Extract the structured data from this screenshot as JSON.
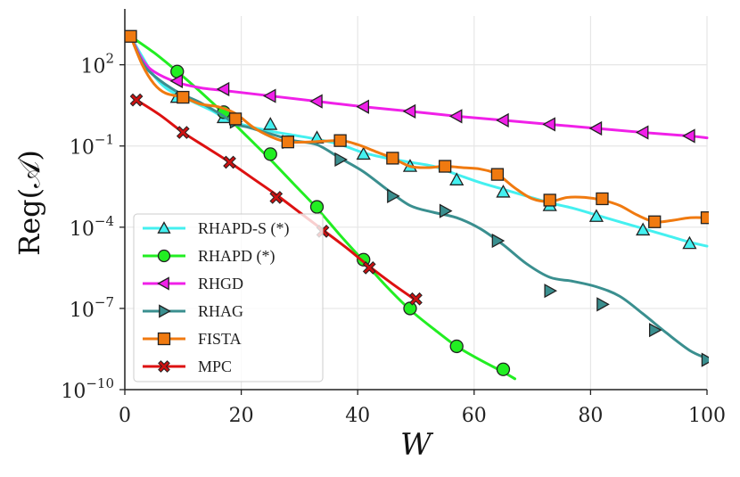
{
  "chart_data": {
    "type": "line",
    "xlabel": "W",
    "ylabel": "Reg(𝒜)",
    "xlim": [
      0,
      100
    ],
    "ylim_log10": [
      -10,
      3.8
    ],
    "yscale": "log",
    "grid": true,
    "legend_position": "lower-left",
    "x_ticks": [
      {
        "value": 0,
        "label": "0"
      },
      {
        "value": 20,
        "label": "20"
      },
      {
        "value": 40,
        "label": "40"
      },
      {
        "value": 60,
        "label": "60"
      },
      {
        "value": 80,
        "label": "80"
      },
      {
        "value": 100,
        "label": "100"
      }
    ],
    "y_ticks": [
      {
        "exp": 2,
        "base": "10",
        "sup": "2"
      },
      {
        "exp": -1,
        "base": "10",
        "sup": "−1"
      },
      {
        "exp": -4,
        "base": "10",
        "sup": "−4"
      },
      {
        "exp": -7,
        "base": "10",
        "sup": "−7"
      },
      {
        "exp": -10,
        "base": "10",
        "sup": "−10"
      }
    ],
    "series": [
      {
        "name": "RHAPD-S (*)",
        "color": "#44f0f0",
        "marker": "triangle-up",
        "marker_fill": "#44f0f0",
        "line": [
          [
            1,
            3.05
          ],
          [
            3,
            2.3
          ],
          [
            5,
            1.6
          ],
          [
            7,
            1.15
          ],
          [
            9,
            0.9
          ],
          [
            12,
            0.6
          ],
          [
            15,
            0.3
          ],
          [
            17,
            0.05
          ],
          [
            20,
            -0.2
          ],
          [
            25,
            -0.45
          ],
          [
            29,
            -0.6
          ],
          [
            33,
            -0.75
          ],
          [
            37,
            -0.95
          ],
          [
            41,
            -1.25
          ],
          [
            45,
            -1.45
          ],
          [
            49,
            -1.6
          ],
          [
            53,
            -1.75
          ],
          [
            57,
            -2.05
          ],
          [
            61,
            -2.35
          ],
          [
            65,
            -2.6
          ],
          [
            69,
            -2.85
          ],
          [
            73,
            -3.1
          ],
          [
            77,
            -3.3
          ],
          [
            81,
            -3.55
          ],
          [
            85,
            -3.8
          ],
          [
            89,
            -4.05
          ],
          [
            93,
            -4.3
          ],
          [
            97,
            -4.55
          ],
          [
            100,
            -4.7
          ]
        ],
        "markers": [
          [
            9,
            0.8
          ],
          [
            17,
            0.05
          ],
          [
            25,
            -0.2
          ],
          [
            33,
            -0.7
          ],
          [
            41,
            -1.3
          ],
          [
            49,
            -1.75
          ],
          [
            57,
            -2.25
          ],
          [
            65,
            -2.7
          ],
          [
            73,
            -3.2
          ],
          [
            81,
            -3.6
          ],
          [
            89,
            -4.1
          ],
          [
            97,
            -4.6
          ]
        ]
      },
      {
        "name": "RHAPD (*)",
        "color": "#22ee22",
        "marker": "circle",
        "marker_fill": "#22ee22",
        "line": [
          [
            1,
            3.05
          ],
          [
            5,
            2.45
          ],
          [
            9,
            1.75
          ],
          [
            13,
            1.0
          ],
          [
            17,
            0.2
          ],
          [
            21,
            -0.65
          ],
          [
            25,
            -1.5
          ],
          [
            29,
            -2.4
          ],
          [
            33,
            -3.3
          ],
          [
            37,
            -4.3
          ],
          [
            41,
            -5.25
          ],
          [
            45,
            -6.2
          ],
          [
            49,
            -7.05
          ],
          [
            53,
            -7.75
          ],
          [
            57,
            -8.4
          ],
          [
            61,
            -8.9
          ],
          [
            65,
            -9.35
          ],
          [
            67,
            -9.6
          ]
        ],
        "markers": [
          [
            9,
            1.75
          ],
          [
            17,
            0.25
          ],
          [
            25,
            -1.3
          ],
          [
            33,
            -3.25
          ],
          [
            41,
            -5.2
          ],
          [
            49,
            -7.0
          ],
          [
            57,
            -8.4
          ],
          [
            65,
            -9.25
          ]
        ]
      },
      {
        "name": "RHGD",
        "color": "#f020e8",
        "marker": "triangle-left",
        "marker_fill": "#f020e8",
        "line": [
          [
            1,
            3.05
          ],
          [
            3,
            2.2
          ],
          [
            5,
            1.75
          ],
          [
            9,
            1.35
          ],
          [
            13,
            1.15
          ],
          [
            17,
            1.05
          ],
          [
            25,
            0.85
          ],
          [
            33,
            0.65
          ],
          [
            41,
            0.45
          ],
          [
            49,
            0.28
          ],
          [
            57,
            0.1
          ],
          [
            65,
            -0.05
          ],
          [
            73,
            -0.2
          ],
          [
            81,
            -0.35
          ],
          [
            89,
            -0.5
          ],
          [
            97,
            -0.63
          ],
          [
            100,
            -0.7
          ]
        ],
        "markers": [
          [
            9,
            1.4
          ],
          [
            17,
            1.1
          ],
          [
            25,
            0.85
          ],
          [
            33,
            0.65
          ],
          [
            41,
            0.45
          ],
          [
            49,
            0.28
          ],
          [
            57,
            0.1
          ],
          [
            65,
            -0.05
          ],
          [
            73,
            -0.2
          ],
          [
            81,
            -0.35
          ],
          [
            89,
            -0.5
          ],
          [
            97,
            -0.63
          ]
        ]
      },
      {
        "name": "RHAG",
        "color": "#3a8f8f",
        "marker": "triangle-right",
        "marker_fill": "#3a8f8f",
        "line": [
          [
            1,
            3.05
          ],
          [
            3,
            2.1
          ],
          [
            5,
            1.6
          ],
          [
            9,
            1.0
          ],
          [
            13,
            0.6
          ],
          [
            17,
            0.1
          ],
          [
            19,
            -0.2
          ],
          [
            21,
            -0.3
          ],
          [
            25,
            -0.55
          ],
          [
            29,
            -0.8
          ],
          [
            33,
            -0.95
          ],
          [
            37,
            -1.45
          ],
          [
            41,
            -1.95
          ],
          [
            45,
            -2.6
          ],
          [
            49,
            -3.2
          ],
          [
            53,
            -3.45
          ],
          [
            57,
            -3.65
          ],
          [
            61,
            -4.05
          ],
          [
            65,
            -4.65
          ],
          [
            69,
            -5.35
          ],
          [
            73,
            -5.85
          ],
          [
            77,
            -6.0
          ],
          [
            81,
            -6.2
          ],
          [
            85,
            -6.55
          ],
          [
            89,
            -7.2
          ],
          [
            93,
            -7.9
          ],
          [
            97,
            -8.55
          ],
          [
            100,
            -8.85
          ]
        ],
        "markers": [
          [
            19,
            -0.1
          ],
          [
            28,
            -0.85
          ],
          [
            37,
            -1.5
          ],
          [
            46,
            -2.85
          ],
          [
            55,
            -3.4
          ],
          [
            64,
            -4.5
          ],
          [
            73,
            -6.35
          ],
          [
            82,
            -6.85
          ],
          [
            91,
            -7.8
          ],
          [
            100,
            -8.9
          ]
        ]
      },
      {
        "name": "FISTA",
        "color": "#f07a10",
        "marker": "square",
        "marker_fill": "#f07a10",
        "line": [
          [
            1,
            3.05
          ],
          [
            3,
            2.0
          ],
          [
            5,
            1.3
          ],
          [
            7,
            0.95
          ],
          [
            10,
            0.8
          ],
          [
            13,
            0.55
          ],
          [
            16,
            0.45
          ],
          [
            19,
            0.2
          ],
          [
            22,
            -0.3
          ],
          [
            25,
            -0.65
          ],
          [
            28,
            -0.85
          ],
          [
            32,
            -0.85
          ],
          [
            37,
            -0.8
          ],
          [
            40,
            -0.95
          ],
          [
            43,
            -1.2
          ],
          [
            46,
            -1.45
          ],
          [
            49,
            -1.75
          ],
          [
            52,
            -1.8
          ],
          [
            55,
            -1.75
          ],
          [
            58,
            -1.8
          ],
          [
            61,
            -1.85
          ],
          [
            64,
            -2.05
          ],
          [
            67,
            -2.55
          ],
          [
            70,
            -2.95
          ],
          [
            73,
            -3.05
          ],
          [
            76,
            -2.9
          ],
          [
            79,
            -2.9
          ],
          [
            82,
            -3.0
          ],
          [
            85,
            -3.2
          ],
          [
            88,
            -3.55
          ],
          [
            91,
            -3.8
          ],
          [
            94,
            -3.75
          ],
          [
            97,
            -3.65
          ],
          [
            100,
            -3.65
          ]
        ],
        "markers": [
          [
            1,
            3.05
          ],
          [
            10,
            0.8
          ],
          [
            19,
            0.0
          ],
          [
            28,
            -0.85
          ],
          [
            37,
            -0.8
          ],
          [
            46,
            -1.45
          ],
          [
            55,
            -1.75
          ],
          [
            64,
            -2.05
          ],
          [
            73,
            -3.0
          ],
          [
            82,
            -2.95
          ],
          [
            91,
            -3.8
          ],
          [
            100,
            -3.65
          ]
        ]
      },
      {
        "name": "MPC",
        "color": "#dd1111",
        "marker": "x",
        "marker_fill": "#cc1111",
        "line": [
          [
            2,
            0.7
          ],
          [
            6,
            0.15
          ],
          [
            10,
            -0.5
          ],
          [
            14,
            -1.05
          ],
          [
            18,
            -1.6
          ],
          [
            22,
            -2.2
          ],
          [
            26,
            -2.8
          ],
          [
            30,
            -3.45
          ],
          [
            34,
            -4.1
          ],
          [
            38,
            -4.75
          ],
          [
            42,
            -5.45
          ],
          [
            46,
            -6.1
          ],
          [
            50,
            -6.7
          ]
        ],
        "markers": [
          [
            2,
            0.7
          ],
          [
            10,
            -0.5
          ],
          [
            18,
            -1.6
          ],
          [
            26,
            -2.9
          ],
          [
            34,
            -4.15
          ],
          [
            42,
            -5.5
          ],
          [
            50,
            -6.65
          ]
        ]
      }
    ]
  }
}
